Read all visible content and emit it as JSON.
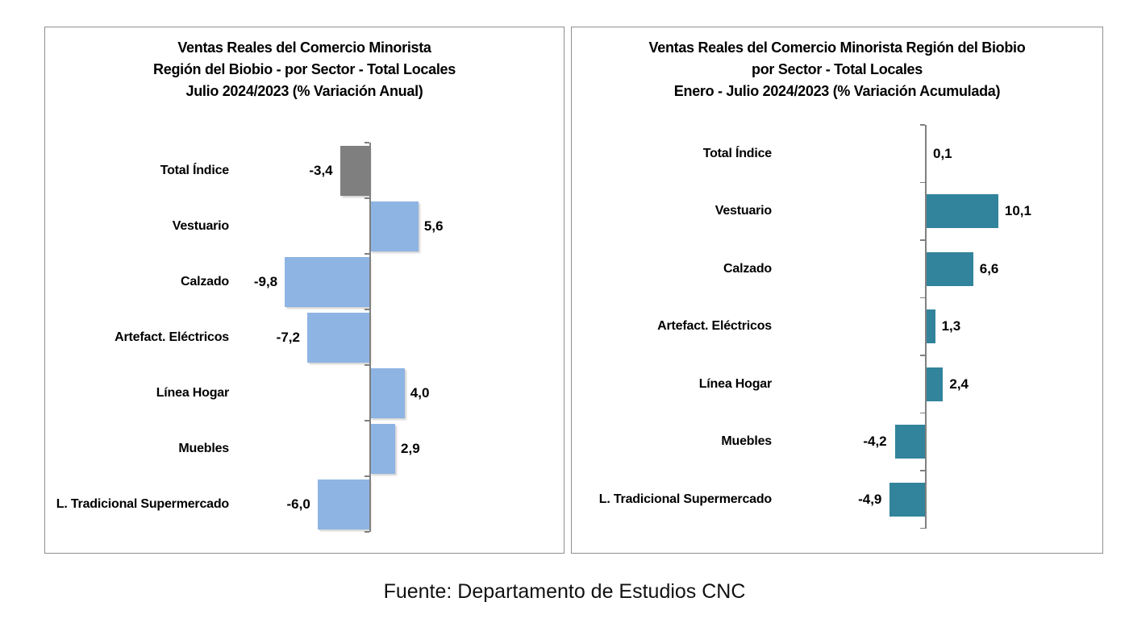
{
  "page": {
    "background": "#ffffff",
    "footer": "Fuente: Departamento de Estudios CNC"
  },
  "chart_data": [
    {
      "type": "bar",
      "orientation": "horizontal",
      "title_lines": [
        "Ventas Reales del Comercio Minorista",
        "Región del Biobio - por Sector - Total Locales",
        "Julio 2024/2023 (% Variación Anual)"
      ],
      "categories": [
        "Total Índice",
        "Vestuario",
        "Calzado",
        "Artefact. Eléctricos",
        "Línea Hogar",
        "Muebles",
        "L. Tradicional Supermercado"
      ],
      "values": [
        -3.4,
        5.6,
        -9.8,
        -7.2,
        4.0,
        2.9,
        -6.0
      ],
      "labels": [
        "-3,4",
        "5,6",
        "-9,8",
        "-7,2",
        "4,0",
        "2,9",
        "-6,0"
      ],
      "bar_colors": [
        "#7f7f7f",
        "#8eb4e3",
        "#8eb4e3",
        "#8eb4e3",
        "#8eb4e3",
        "#8eb4e3",
        "#8eb4e3"
      ],
      "axis_color": "#808080",
      "grid": false,
      "legend": "none",
      "value_labels_shown": true
    },
    {
      "type": "bar",
      "orientation": "horizontal",
      "title_lines": [
        "Ventas Reales del Comercio Minorista Región del Biobio",
        "por Sector - Total Locales",
        "Enero - Julio 2024/2023  (% Variación Acumulada)"
      ],
      "categories": [
        "Total Índice",
        "Vestuario",
        "Calzado",
        "Artefact. Eléctricos",
        "Línea Hogar",
        "Muebles",
        "L. Tradicional Supermercado"
      ],
      "values": [
        0.1,
        10.1,
        6.6,
        1.3,
        2.4,
        -4.2,
        -4.9
      ],
      "labels": [
        "0,1",
        "10,1",
        "6,6",
        "1,3",
        "2,4",
        "-4,2",
        "-4,9"
      ],
      "bar_colors": [
        "#31849b",
        "#31849b",
        "#31849b",
        "#31849b",
        "#31849b",
        "#31849b",
        "#31849b"
      ],
      "axis_color": "#808080",
      "grid": false,
      "legend": "none",
      "value_labels_shown": true
    }
  ]
}
